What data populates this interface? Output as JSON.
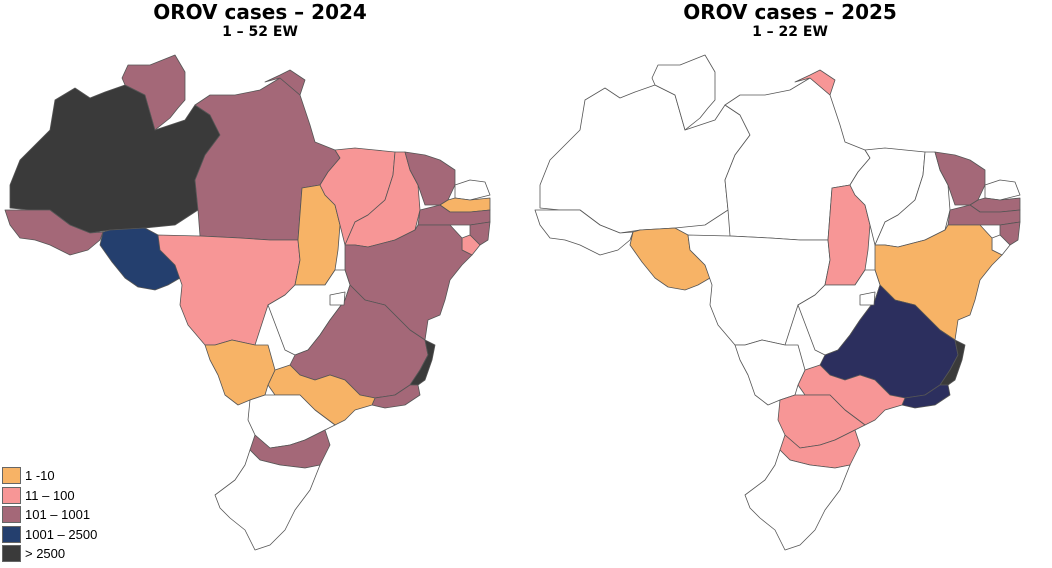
{
  "colors": {
    "none": "#ffffff",
    "c1": "#f7b366",
    "c2": "#f79696",
    "c3": "#a46878",
    "c4": "#243f6e",
    "c5": "#3a3a3a",
    "c6": "#2c2f5e"
  },
  "maps": [
    {
      "title": "OROV cases – 2024",
      "subtitle": "1 – 52 EW",
      "states": {
        "AM": "c5",
        "AC": "c3",
        "RO": "c4",
        "RR": "c3",
        "PA": "c3",
        "AP": "c3",
        "MT": "c2",
        "TO": "c1",
        "MA": "c2",
        "PI": "c2",
        "CE": "c3",
        "RN": "none",
        "PB": "c1",
        "PE": "c3",
        "AL": "c3",
        "SE": "c2",
        "BA": "c3",
        "GO": "none",
        "DF": "none",
        "MG": "c3",
        "ES": "c5",
        "RJ": "c3",
        "SP": "c1",
        "MS": "c1",
        "PR": "none",
        "SC": "c3",
        "RS": "none"
      }
    },
    {
      "title": "OROV cases – 2025",
      "subtitle": "1 – 22 EW",
      "states": {
        "AM": "none",
        "AC": "none",
        "RO": "c1",
        "RR": "none",
        "PA": "none",
        "AP": "c2",
        "MT": "none",
        "TO": "c2",
        "MA": "none",
        "PI": "none",
        "CE": "c3",
        "RN": "none",
        "PB": "c3",
        "PE": "c3",
        "AL": "c3",
        "SE": "none",
        "BA": "c1",
        "GO": "none",
        "DF": "none",
        "MG": "c6",
        "ES": "c5",
        "RJ": "c6",
        "SP": "c2",
        "MS": "none",
        "PR": "c2",
        "SC": "c2",
        "RS": "none"
      }
    }
  ],
  "legend": [
    {
      "label": "1 -10",
      "color": "#f7b366"
    },
    {
      "label": "11 – 100",
      "color": "#f79696"
    },
    {
      "label": "101 – 1001",
      "color": "#a46878"
    },
    {
      "label": "1001 – 2500",
      "color": "#243f6e"
    },
    {
      "label": "> 2500",
      "color": "#3a3a3a"
    }
  ]
}
